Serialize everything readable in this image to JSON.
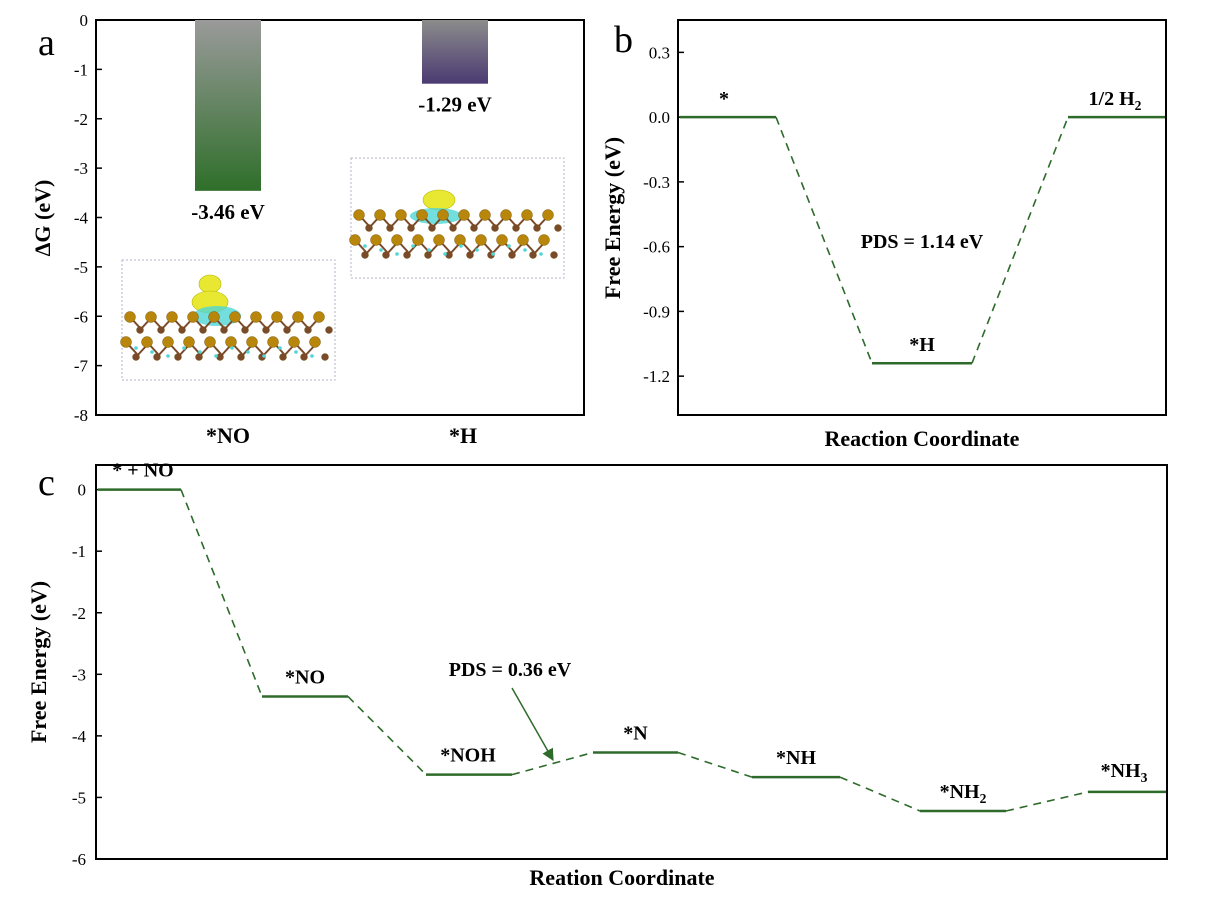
{
  "colors": {
    "step": "#2e6b2a",
    "dash": "#2e6b2a",
    "bar_no_top": "#9a9a9a",
    "bar_no_bottom": "#2f6f2a",
    "bar_h_top": "#8c8c8c",
    "bar_h_bottom": "#4b3a72",
    "atom_s": "#b8860b",
    "atom_mo": "#7a4a2a",
    "iso_yellow": "#e8e832",
    "iso_cyan": "#4fd6d6"
  },
  "chart_data": [
    {
      "panel_label": "a",
      "type": "bar",
      "categories": [
        "*NO",
        "*H"
      ],
      "values": [
        -3.46,
        -1.29
      ],
      "value_labels": [
        "-3.46 eV",
        "-1.29 eV"
      ],
      "ylabel": "ΔG (eV)",
      "ylim": [
        -8,
        0
      ],
      "yticks": [
        "0",
        "-1",
        "-2",
        "-3",
        "-4",
        "-5",
        "-6",
        "-7",
        "-8"
      ],
      "insets": [
        {
          "name": "NO adsorption structure",
          "icon": "charge-density-structure"
        },
        {
          "name": "H adsorption structure",
          "icon": "charge-density-structure"
        }
      ]
    },
    {
      "panel_label": "b",
      "type": "line",
      "xlabel": "Reaction Coordinate",
      "ylabel": "Free Energy (eV)",
      "ylim": [
        -1.38,
        0.45
      ],
      "yticks": [
        "0.3",
        "0.0",
        "-0.3",
        "-0.6",
        "-0.9",
        "-1.2"
      ],
      "steps": [
        {
          "label": "*",
          "value": 0.0
        },
        {
          "label": "*H",
          "value": -1.14
        },
        {
          "label": "1/2 H",
          "label_sub": "2",
          "value": 0.0
        }
      ],
      "annotation": "PDS = 1.14 eV"
    },
    {
      "panel_label": "c",
      "type": "line",
      "xlabel": "Reation Coordinate",
      "ylabel": "Free Energy (eV)",
      "ylim": [
        -6,
        0.4
      ],
      "yticks": [
        "0",
        "-1",
        "-2",
        "-3",
        "-4",
        "-5",
        "-6"
      ],
      "steps": [
        {
          "label": "* + NO",
          "label_sub": "",
          "value": 0.0
        },
        {
          "label": "*NO",
          "label_sub": "",
          "value": -3.36
        },
        {
          "label": "*NOH",
          "label_sub": "",
          "value": -4.63
        },
        {
          "label": "*N",
          "label_sub": "",
          "value": -4.27
        },
        {
          "label": "*NH",
          "label_sub": "",
          "value": -4.67
        },
        {
          "label": "*NH",
          "label_sub": "2",
          "value": -5.22
        },
        {
          "label": "*NH",
          "label_sub": "3",
          "value": -4.91
        }
      ],
      "annotation": "PDS = 0.36 eV"
    }
  ]
}
